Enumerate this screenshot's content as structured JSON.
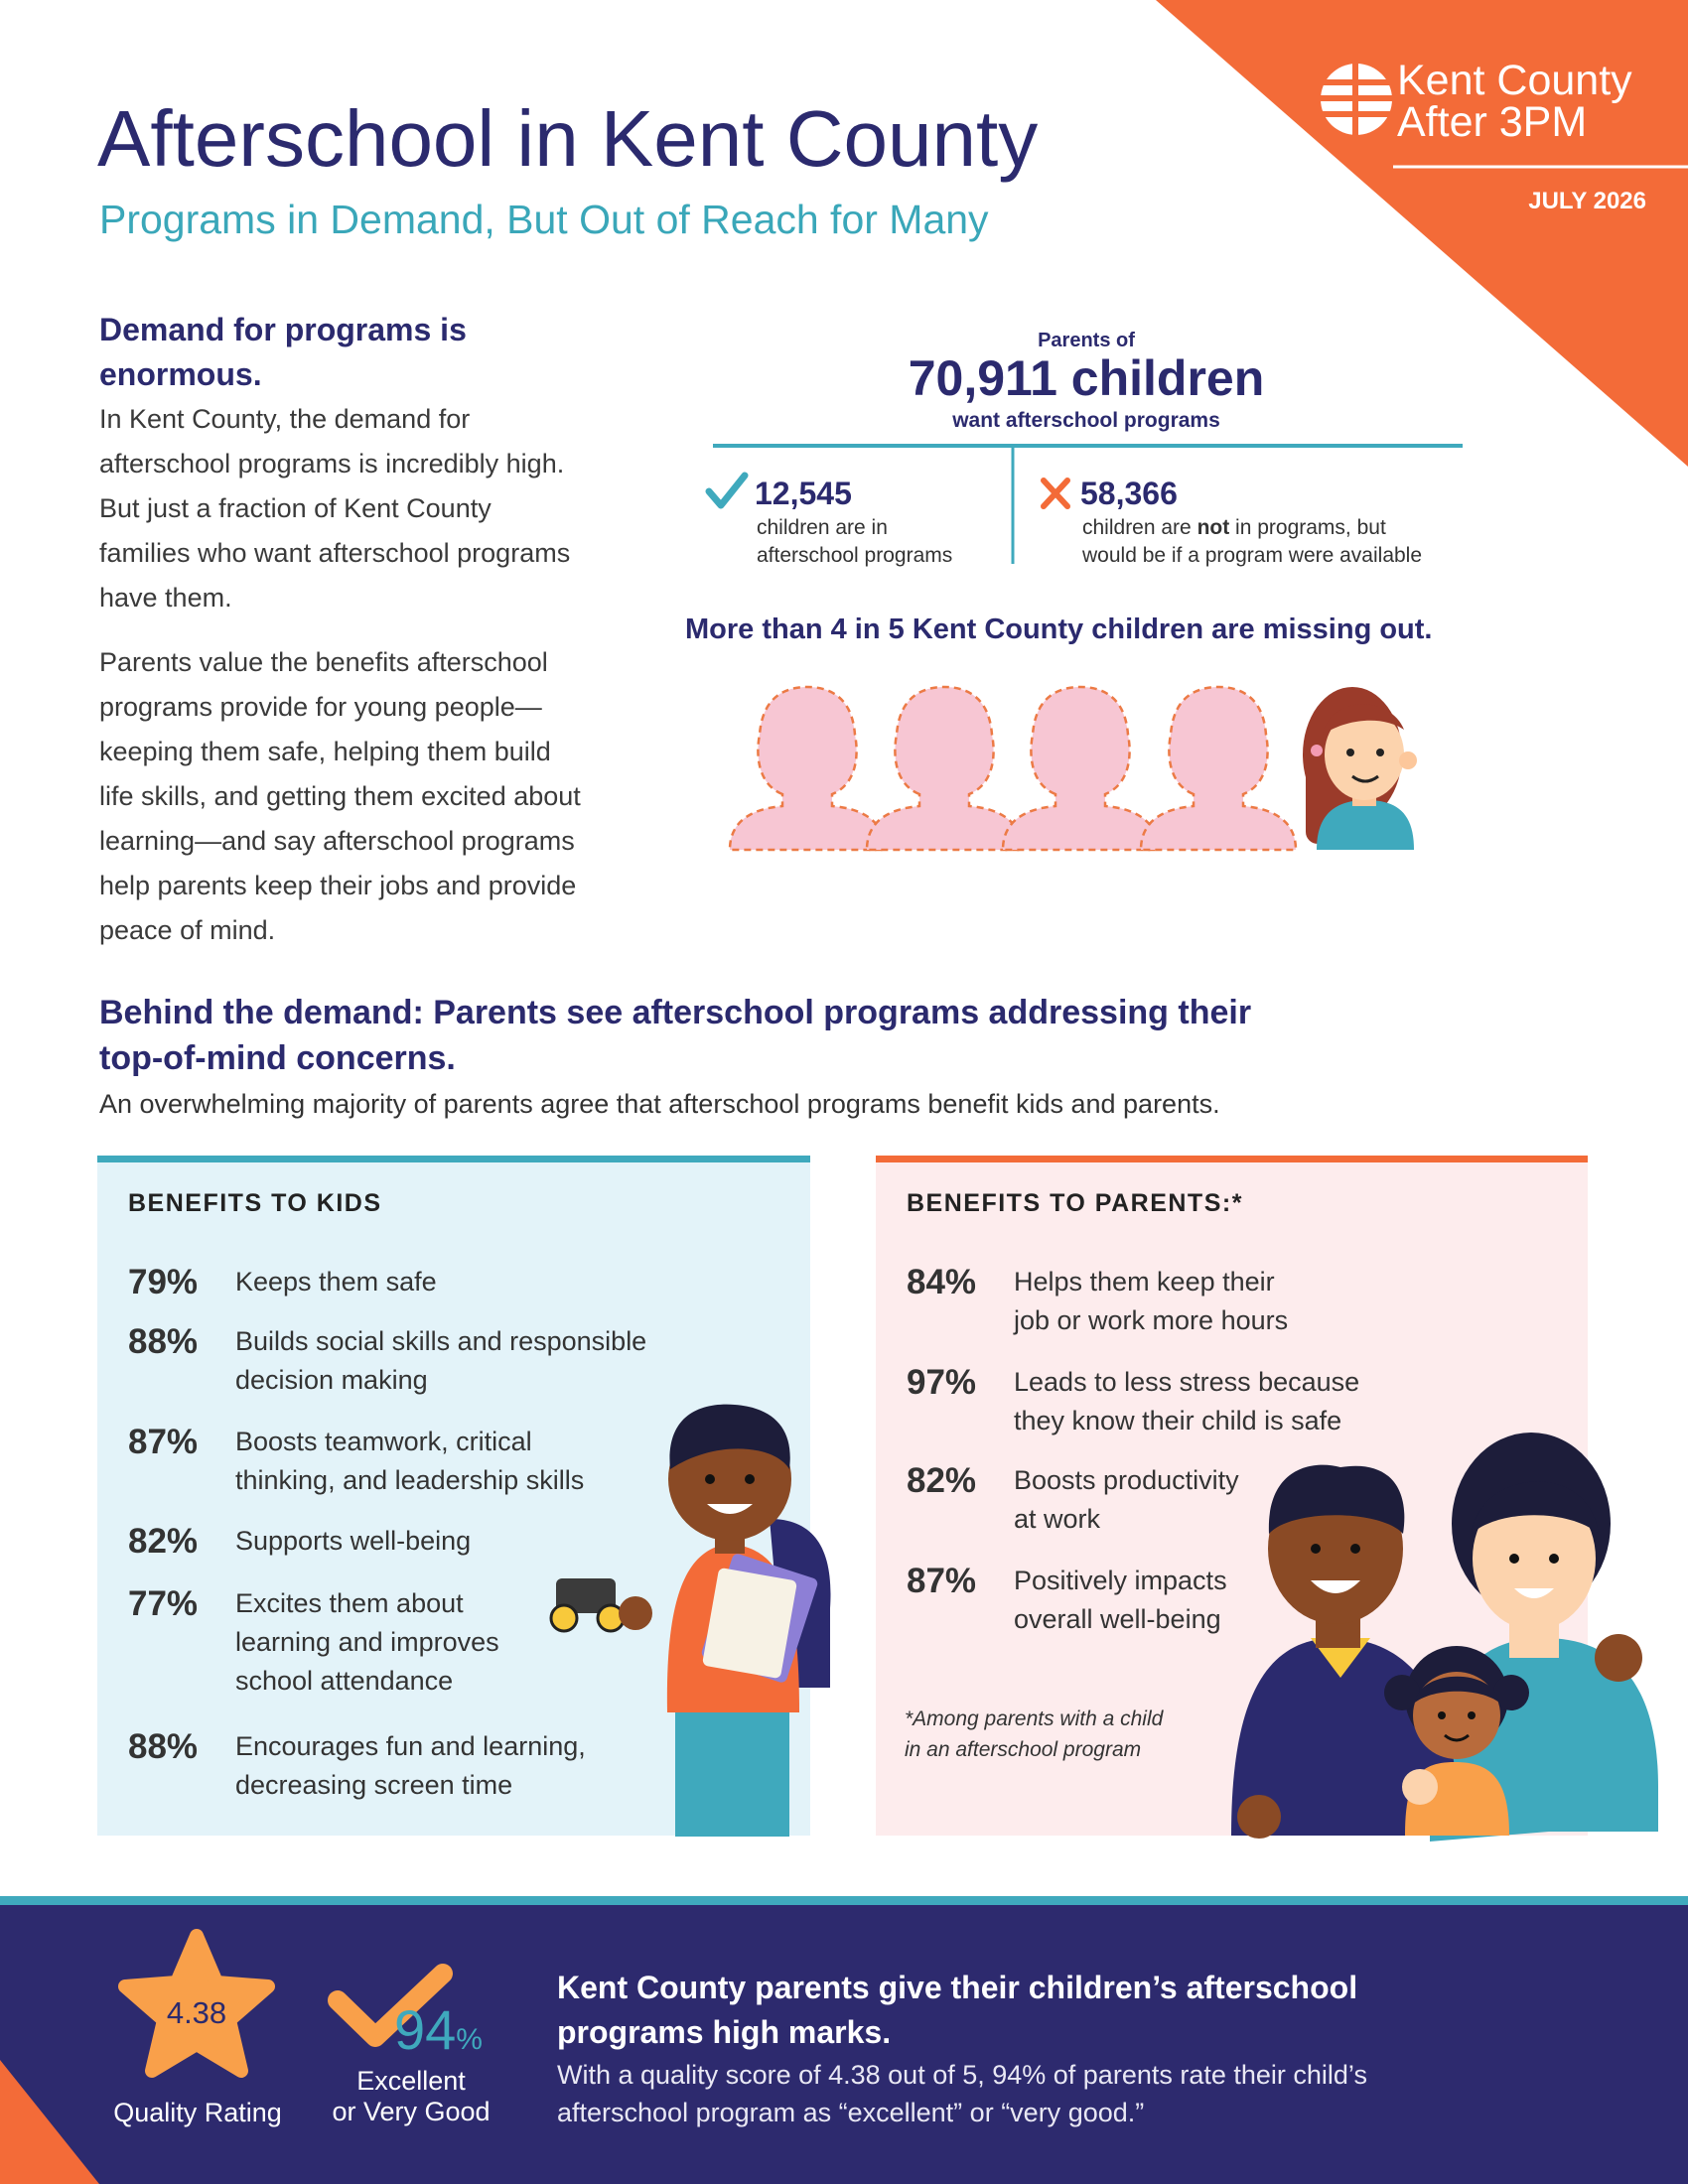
{
  "header": {
    "title": "Afterschool in Kent County",
    "subtitle": "Programs in Demand, But Out of Reach for Many",
    "logo": [
      "Kent County",
      "After 3PM"
    ],
    "date": "JULY 2026"
  },
  "demand": {
    "heading": [
      "Demand for programs is",
      "enormous."
    ],
    "paragraphs": [
      [
        "In Kent County, the demand for",
        "afterschool programs is incredibly high.",
        "But just a fraction of Kent County",
        "families who want afterschool programs",
        "have them."
      ],
      [
        "Parents value the benefits afterschool",
        "programs provide for young people—",
        "keeping them safe, helping them build",
        "life skills, and getting them excited about",
        "learning—and say afterschool programs",
        "help parents keep their jobs and provide",
        "peace of mind."
      ]
    ]
  },
  "stats": {
    "intro": "Parents of",
    "total": "70,911 children",
    "total_caption": "want afterschool programs",
    "in_programs": {
      "number": "12,545",
      "caption": [
        "children are in",
        "afterschool programs"
      ]
    },
    "not_in_programs": {
      "number": "58,366",
      "caption_line1": [
        "children are ",
        "not",
        " in programs, but"
      ],
      "caption_line2": "would be if a program were available"
    },
    "missing_out": "More than 4 in 5 Kent County children are missing out."
  },
  "concerns": {
    "heading": [
      "Behind the demand: Parents see afterschool programs addressing their",
      "top-of-mind concerns."
    ],
    "subheading": "An overwhelming majority of parents agree that afterschool programs benefit kids and parents."
  },
  "kids_benefits": {
    "title": "BENEFITS TO KIDS",
    "items": [
      {
        "percent": "79%",
        "text": [
          "Keeps them safe"
        ]
      },
      {
        "percent": "88%",
        "text": [
          "Builds social skills and responsible",
          "decision making"
        ]
      },
      {
        "percent": "87%",
        "text": [
          "Boosts teamwork, critical",
          "thinking, and leadership skills"
        ]
      },
      {
        "percent": "82%",
        "text": [
          "Supports well-being"
        ]
      },
      {
        "percent": "77%",
        "text": [
          "Excites them about",
          "learning and improves",
          "school attendance"
        ]
      },
      {
        "percent": "88%",
        "text": [
          "Encourages fun and learning,",
          "decreasing screen time"
        ]
      }
    ]
  },
  "parents_benefits": {
    "title": "BENEFITS TO PARENTS:*",
    "items": [
      {
        "percent": "84%",
        "text": [
          "Helps them keep their",
          "job or work more hours"
        ]
      },
      {
        "percent": "97%",
        "text": [
          "Leads to less stress because",
          "they know their child is safe"
        ]
      },
      {
        "percent": "82%",
        "text": [
          "Boosts productivity",
          "at work"
        ]
      },
      {
        "percent": "87%",
        "text": [
          "Positively impacts",
          "overall well-being"
        ]
      }
    ],
    "footnote": [
      "*Among parents with a child",
      "in an afterschool program"
    ]
  },
  "quality": {
    "rating": "4.38",
    "rating_label": "Quality Rating",
    "share": "94",
    "share_unit": "%",
    "share_label": [
      "Excellent",
      "or Very Good"
    ],
    "heading": [
      "Kent County parents give their children’s afterschool",
      "programs high marks."
    ],
    "body": [
      "With a quality score of 4.38 out of 5, 94% of parents rate their child’s",
      "afterschool program as “excellent” or “very good.”"
    ]
  }
}
